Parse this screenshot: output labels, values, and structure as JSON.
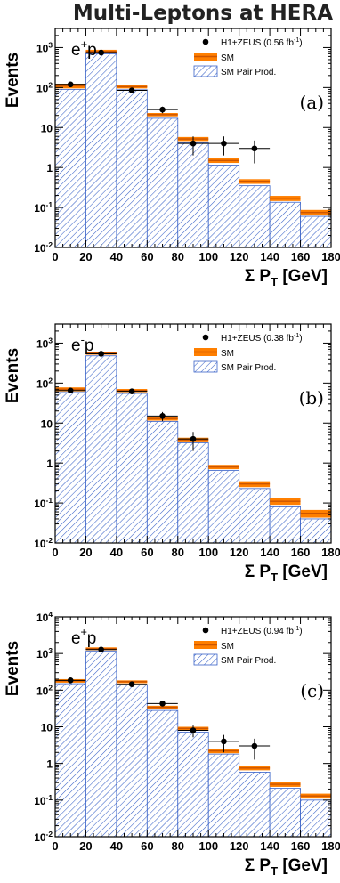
{
  "page_title": "Multi-Leptons at HERA",
  "colors": {
    "sm_band": "#ff7f00",
    "sm_line": "#cc5500",
    "pair_hatch": "#3a63c8",
    "pair_fill": "#ffffff",
    "data_marker": "#000000"
  },
  "chart_data": [
    {
      "type": "bar",
      "panel_label": "(a)",
      "process": "e+p",
      "ylabel": "Events",
      "xlabel": "Σ PT [GeV]",
      "x_ticks": [
        "0",
        "20",
        "40",
        "60",
        "80",
        "100",
        "120",
        "140",
        "160",
        "180"
      ],
      "y_ticks": [
        "10-2",
        "10-1",
        "1",
        "10",
        "102",
        "103"
      ],
      "ylim": [
        0.01,
        3000
      ],
      "yscale": "log",
      "bin_edges": [
        0,
        20,
        40,
        60,
        80,
        100,
        120,
        140,
        160,
        180
      ],
      "legend": {
        "data": "H1+ZEUS (0.56 fb-1)",
        "sm": "SM",
        "pair": "SM Pair Prod."
      },
      "sm": [
        110,
        800,
        105,
        21,
        5.2,
        1.5,
        0.45,
        0.17,
        0.075
      ],
      "sm_err": [
        15,
        80,
        10,
        2,
        0.6,
        0.2,
        0.06,
        0.025,
        0.012
      ],
      "pair": [
        90,
        700,
        88,
        17,
        4.2,
        1.15,
        0.35,
        0.135,
        0.06
      ],
      "data": [
        {
          "x": 10,
          "y": 120
        },
        {
          "x": 30,
          "y": 750
        },
        {
          "x": 50,
          "y": 85
        },
        {
          "x": 70,
          "y": 28
        },
        {
          "x": 90,
          "y": 4
        },
        {
          "x": 110,
          "y": 4
        },
        {
          "x": 130,
          "y": 3
        }
      ]
    },
    {
      "type": "bar",
      "panel_label": "(b)",
      "process": "e-p",
      "ylabel": "Events",
      "xlabel": "Σ PT [GeV]",
      "x_ticks": [
        "0",
        "20",
        "40",
        "60",
        "80",
        "100",
        "120",
        "140",
        "160",
        "180"
      ],
      "y_ticks": [
        "10-2",
        "10-1",
        "1",
        "10",
        "102",
        "103"
      ],
      "ylim": [
        0.01,
        3000
      ],
      "yscale": "log",
      "bin_edges": [
        0,
        20,
        40,
        60,
        80,
        100,
        120,
        140,
        160,
        180
      ],
      "legend": {
        "data": "H1+ZEUS (0.38 fb-1)",
        "sm": "SM",
        "pair": "SM Pair Prod."
      },
      "sm": [
        70,
        560,
        65,
        13,
        3.8,
        0.8,
        0.3,
        0.11,
        0.055
      ],
      "sm_err": [
        8,
        50,
        6,
        1.5,
        0.5,
        0.1,
        0.05,
        0.02,
        0.012
      ],
      "pair": [
        58,
        480,
        55,
        11,
        3.2,
        0.65,
        0.23,
        0.08,
        0.04
      ],
      "data": [
        {
          "x": 10,
          "y": 65
        },
        {
          "x": 30,
          "y": 540
        },
        {
          "x": 50,
          "y": 62
        },
        {
          "x": 70,
          "y": 15
        },
        {
          "x": 90,
          "y": 4
        }
      ]
    },
    {
      "type": "bar",
      "panel_label": "(c)",
      "process": "e±p",
      "ylabel": "Events",
      "xlabel": "Σ PT [GeV]",
      "x_ticks": [
        "0",
        "20",
        "40",
        "60",
        "80",
        "100",
        "120",
        "140",
        "160",
        "180"
      ],
      "y_ticks": [
        "10-2",
        "10-1",
        "1",
        "10",
        "102",
        "103",
        "104"
      ],
      "ylim": [
        0.01,
        10000
      ],
      "yscale": "log",
      "bin_edges": [
        0,
        20,
        40,
        60,
        80,
        100,
        120,
        140,
        160,
        180
      ],
      "legend": {
        "data": "H1+ZEUS (0.94 fb-1)",
        "sm": "SM",
        "pair": "SM Pair Prod."
      },
      "sm": [
        180,
        1350,
        170,
        34,
        9,
        2.2,
        0.75,
        0.27,
        0.13
      ],
      "sm_err": [
        20,
        120,
        15,
        3.5,
        1,
        0.3,
        0.1,
        0.04,
        0.02
      ],
      "pair": [
        150,
        1150,
        140,
        28,
        7.2,
        1.8,
        0.58,
        0.21,
        0.1
      ],
      "data": [
        {
          "x": 10,
          "y": 185
        },
        {
          "x": 30,
          "y": 1280
        },
        {
          "x": 50,
          "y": 145
        },
        {
          "x": 70,
          "y": 43
        },
        {
          "x": 90,
          "y": 8
        },
        {
          "x": 110,
          "y": 4
        },
        {
          "x": 130,
          "y": 3
        }
      ]
    }
  ]
}
